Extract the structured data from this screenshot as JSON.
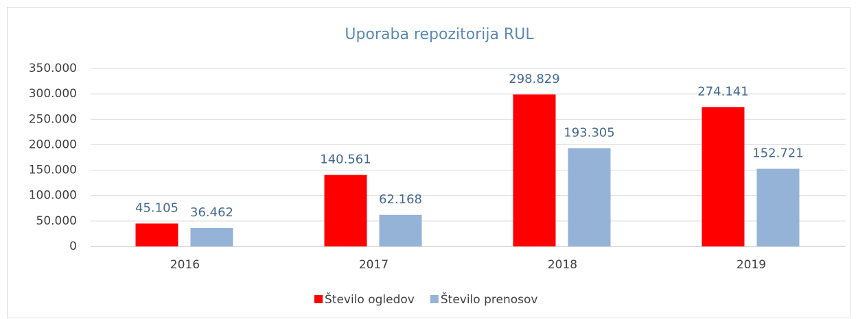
{
  "chart_data": {
    "type": "bar",
    "title": "Uporaba repozitorija RUL",
    "categories": [
      "2016",
      "2017",
      "2018",
      "2019"
    ],
    "series": [
      {
        "name": "Število ogledov",
        "color": "#ff0000",
        "values": [
          45105,
          140561,
          298829,
          274141
        ],
        "value_labels": [
          "45.105",
          "140.561",
          "298.829",
          "274.141"
        ]
      },
      {
        "name": "Število prenosov",
        "color": "#95b3d7",
        "values": [
          36462,
          62168,
          193305,
          152721
        ],
        "value_labels": [
          "36.462",
          "62.168",
          "193.305",
          "152.721"
        ]
      }
    ],
    "ylim": [
      0,
      350000
    ],
    "yticks": [
      0,
      {
        "value": 50000,
        "label": "50.000"
      },
      {
        "value": 100000,
        "label": "100.000"
      },
      {
        "value": 150000,
        "label": "150.000"
      },
      {
        "value": 200000,
        "label": "200.000"
      },
      {
        "value": 250000,
        "label": "250.000"
      },
      {
        "value": 300000,
        "label": "300.000"
      },
      {
        "value": 350000,
        "label": "350.000"
      }
    ],
    "grid": true,
    "legend": "bottom"
  }
}
